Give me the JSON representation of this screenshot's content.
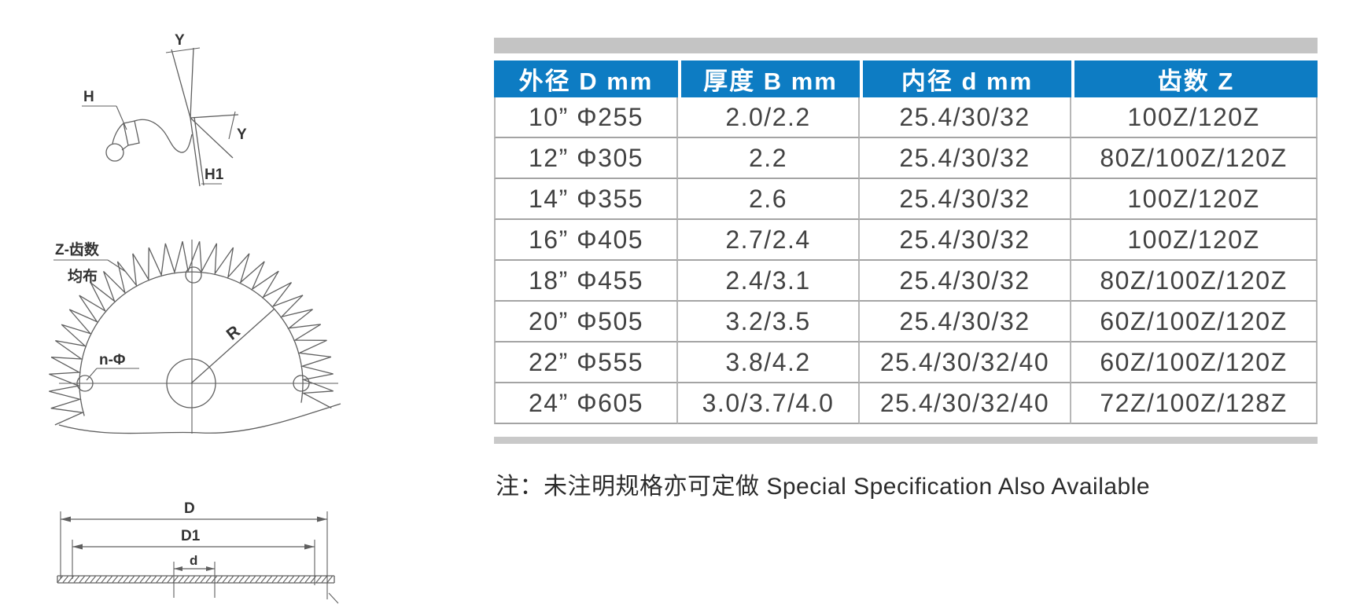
{
  "table": {
    "headers": [
      "外径 D  mm",
      "厚度 B  mm",
      "内径 d mm",
      "齿数 Z"
    ],
    "rows": [
      [
        "10” Φ255",
        "2.0/2.2",
        "25.4/30/32",
        "100Z/120Z"
      ],
      [
        "12” Φ305",
        "2.2",
        "25.4/30/32",
        "80Z/100Z/120Z"
      ],
      [
        "14” Φ355",
        "2.6",
        "25.4/30/32",
        "100Z/120Z"
      ],
      [
        "16” Φ405",
        "2.7/2.4",
        "25.4/30/32",
        "100Z/120Z"
      ],
      [
        "18” Φ455",
        "2.4/3.1",
        "25.4/30/32",
        "80Z/100Z/120Z"
      ],
      [
        "20” Φ505",
        "3.2/3.5",
        "25.4/30/32",
        "60Z/100Z/120Z"
      ],
      [
        "22” Φ555",
        "3.8/4.2",
        "25.4/30/32/40",
        "60Z/100Z/120Z"
      ],
      [
        "24” Φ605",
        "3.0/3.7/4.0",
        "25.4/30/32/40",
        "72Z/100Z/128Z"
      ]
    ]
  },
  "note": "注：未注明规格亦可定做 Special Specification Also Available",
  "diagrams": {
    "tooth": {
      "angle_top": "Y",
      "angle_side": "Y",
      "relief": "H",
      "relief2": "H1"
    },
    "front": {
      "teeth": "Z-齿数",
      "evenly": "均布",
      "holes": "n-Φ",
      "radius": "R"
    },
    "section": {
      "outer_diameter": "D",
      "pitch_diameter": "D1",
      "bore": "d"
    }
  },
  "colors": {
    "header_bg": "#0d7cc3",
    "header_text": "#ffffff",
    "bar_gray": "#c4c4c4",
    "grid_line": "#a4a4a4",
    "body_text": "#424242"
  }
}
